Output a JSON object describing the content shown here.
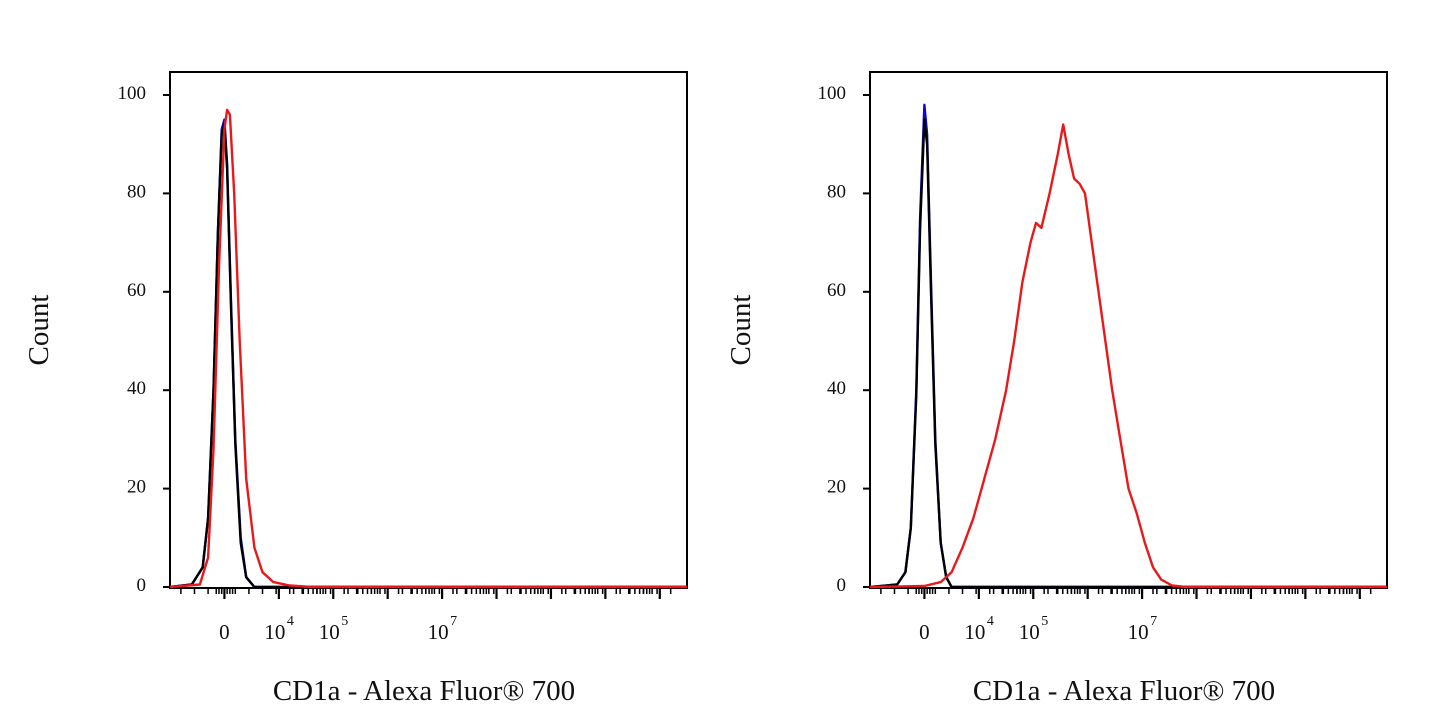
{
  "chart_data": [
    {
      "type": "line",
      "ylabel": "Count",
      "xlabel": "CD1a - Alexa Fluor® 700",
      "yticks": [
        "0",
        "20",
        "40",
        "60",
        "80",
        "100"
      ],
      "ylim": [
        0,
        105
      ],
      "x_scale": "biexponential (log)",
      "xticks": [
        {
          "base": "0",
          "exp": ""
        },
        {
          "base": "10",
          "exp": "4"
        },
        {
          "base": "10",
          "exp": "5"
        },
        {
          "base": "10",
          "exp": "7"
        }
      ],
      "grid": false,
      "legend": "none",
      "series": [
        {
          "color": "#0a0acc",
          "points": [
            [
              -1,
              0
            ],
            [
              -0.6,
              0.5
            ],
            [
              -0.4,
              4
            ],
            [
              -0.3,
              14
            ],
            [
              -0.2,
              40
            ],
            [
              -0.12,
              72
            ],
            [
              -0.05,
              93
            ],
            [
              0,
              95
            ],
            [
              0.05,
              86
            ],
            [
              0.12,
              58
            ],
            [
              0.2,
              30
            ],
            [
              0.3,
              10
            ],
            [
              0.4,
              2
            ],
            [
              0.55,
              0
            ],
            [
              8.5,
              0
            ]
          ]
        },
        {
          "color": "#000000",
          "points": [
            [
              -1,
              0
            ],
            [
              -0.6,
              0.5
            ],
            [
              -0.4,
              4
            ],
            [
              -0.3,
              14
            ],
            [
              -0.2,
              40
            ],
            [
              -0.12,
              72
            ],
            [
              -0.05,
              92
            ],
            [
              0,
              94
            ],
            [
              0.05,
              85
            ],
            [
              0.12,
              57
            ],
            [
              0.2,
              29
            ],
            [
              0.3,
              9
            ],
            [
              0.4,
              2
            ],
            [
              0.55,
              0
            ],
            [
              8.5,
              0
            ]
          ]
        },
        {
          "color": "#e8191b",
          "points": [
            [
              -1,
              0
            ],
            [
              -0.45,
              0.5
            ],
            [
              -0.3,
              6
            ],
            [
              -0.2,
              28
            ],
            [
              -0.1,
              65
            ],
            [
              0,
              93
            ],
            [
              0.05,
              97
            ],
            [
              0.1,
              96
            ],
            [
              0.18,
              80
            ],
            [
              0.28,
              50
            ],
            [
              0.4,
              22
            ],
            [
              0.55,
              8
            ],
            [
              0.7,
              3
            ],
            [
              0.9,
              1
            ],
            [
              1.2,
              0.3
            ],
            [
              1.6,
              0
            ],
            [
              8.5,
              0
            ]
          ]
        }
      ]
    },
    {
      "type": "line",
      "ylabel": "Count",
      "xlabel": "CD1a - Alexa Fluor® 700",
      "yticks": [
        "0",
        "20",
        "40",
        "60",
        "80",
        "100"
      ],
      "ylim": [
        0,
        105
      ],
      "x_scale": "biexponential (log)",
      "xticks": [
        {
          "base": "0",
          "exp": ""
        },
        {
          "base": "10",
          "exp": "4"
        },
        {
          "base": "10",
          "exp": "5"
        },
        {
          "base": "10",
          "exp": "7"
        }
      ],
      "grid": false,
      "legend": "none",
      "series": [
        {
          "color": "#0a0acc",
          "points": [
            [
              -1,
              0
            ],
            [
              -0.5,
              0.5
            ],
            [
              -0.35,
              3
            ],
            [
              -0.25,
              12
            ],
            [
              -0.15,
              40
            ],
            [
              -0.08,
              75
            ],
            [
              0,
              98
            ],
            [
              0.05,
              92
            ],
            [
              0.12,
              62
            ],
            [
              0.2,
              30
            ],
            [
              0.3,
              9
            ],
            [
              0.4,
              2
            ],
            [
              0.5,
              0
            ],
            [
              8.5,
              0
            ]
          ]
        },
        {
          "color": "#000000",
          "points": [
            [
              -1,
              0
            ],
            [
              -0.5,
              0.5
            ],
            [
              -0.35,
              3
            ],
            [
              -0.25,
              12
            ],
            [
              -0.15,
              39
            ],
            [
              -0.08,
              73
            ],
            [
              0,
              95
            ],
            [
              0.05,
              90
            ],
            [
              0.12,
              60
            ],
            [
              0.2,
              29
            ],
            [
              0.3,
              9
            ],
            [
              0.4,
              2
            ],
            [
              0.5,
              0
            ],
            [
              8.5,
              0
            ]
          ]
        },
        {
          "color": "#e8191b",
          "points": [
            [
              -1,
              0
            ],
            [
              0,
              0.2
            ],
            [
              0.3,
              1
            ],
            [
              0.5,
              3
            ],
            [
              0.7,
              8
            ],
            [
              0.9,
              14
            ],
            [
              1.1,
              22
            ],
            [
              1.3,
              30
            ],
            [
              1.5,
              40
            ],
            [
              1.65,
              50
            ],
            [
              1.8,
              62
            ],
            [
              1.95,
              70
            ],
            [
              2.05,
              74
            ],
            [
              2.15,
              73
            ],
            [
              2.3,
              80
            ],
            [
              2.45,
              88
            ],
            [
              2.55,
              94
            ],
            [
              2.65,
              88
            ],
            [
              2.75,
              83
            ],
            [
              2.85,
              82
            ],
            [
              2.95,
              80
            ],
            [
              3.05,
              72
            ],
            [
              3.15,
              64
            ],
            [
              3.3,
              52
            ],
            [
              3.45,
              40
            ],
            [
              3.6,
              30
            ],
            [
              3.75,
              20
            ],
            [
              3.9,
              15
            ],
            [
              4.05,
              9
            ],
            [
              4.2,
              4
            ],
            [
              4.35,
              1.5
            ],
            [
              4.55,
              0.3
            ],
            [
              4.8,
              0
            ],
            [
              8.5,
              0
            ]
          ]
        }
      ]
    }
  ]
}
